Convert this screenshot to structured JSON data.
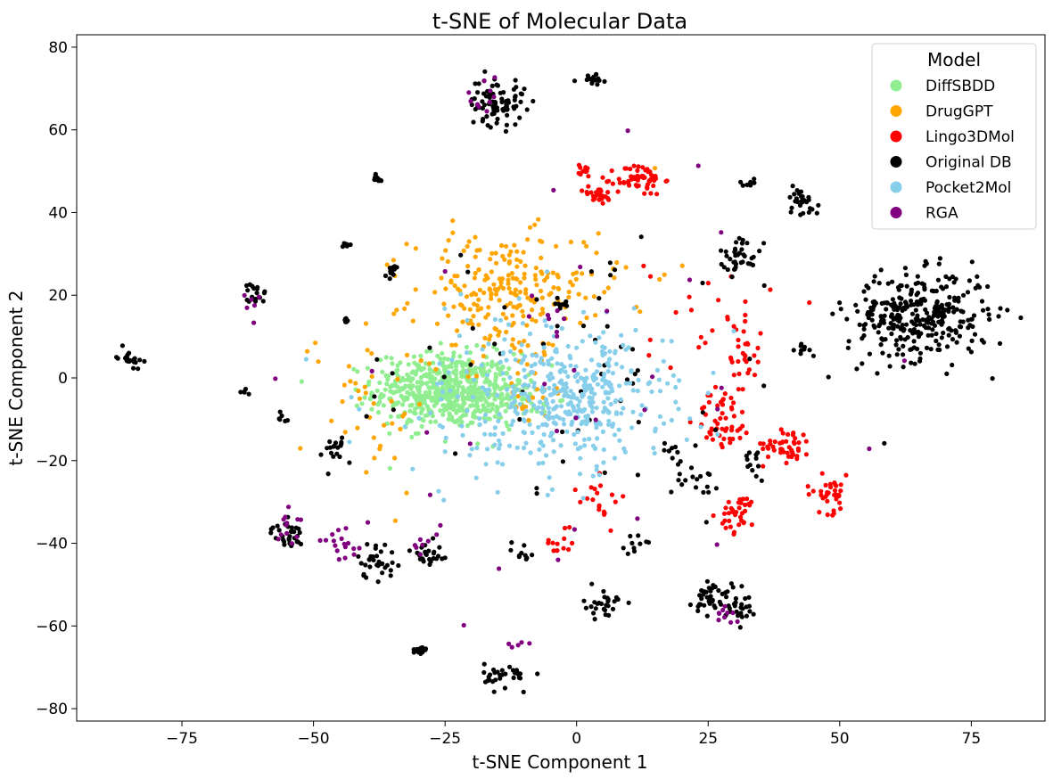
{
  "chart_data": {
    "type": "scatter",
    "title": "t-SNE of Molecular Data",
    "xlabel": "t-SNE Component 1",
    "ylabel": "t-SNE Component 2",
    "xlim": [
      -95,
      89
    ],
    "ylim": [
      -83,
      83
    ],
    "xticks": [
      -75,
      -50,
      -25,
      0,
      25,
      50,
      75
    ],
    "yticks": [
      -80,
      -60,
      -40,
      -20,
      0,
      20,
      40,
      60,
      80
    ],
    "grid": false,
    "legend": {
      "title": "Model",
      "placement": "top-right"
    },
    "series": [
      {
        "name": "DiffSBDD",
        "color": "#90EE90",
        "clusters": [
          {
            "center": [
              -25,
              -3
            ],
            "spread": [
              9,
              6
            ],
            "count": 560
          },
          {
            "center": [
              -14,
              -5
            ],
            "spread": [
              5,
              4
            ],
            "count": 80
          }
        ]
      },
      {
        "name": "DrugGPT",
        "color": "#FFA500",
        "clusters": [
          {
            "center": [
              -15,
              20
            ],
            "spread": [
              11,
              10
            ],
            "count": 200
          },
          {
            "center": [
              -40,
              -5
            ],
            "spread": [
              8,
              15
            ],
            "count": 40
          },
          {
            "center": [
              0,
              25
            ],
            "spread": [
              12,
              10
            ],
            "count": 40
          },
          {
            "center": [
              -10,
              0
            ],
            "spread": [
              8,
              8
            ],
            "count": 30
          }
        ]
      },
      {
        "name": "Lingo3DMol",
        "color": "#FF0000",
        "clusters": [
          {
            "center": [
              12,
              48
            ],
            "spread": [
              3,
              2.5
            ],
            "count": 60
          },
          {
            "center": [
              4,
              44
            ],
            "spread": [
              2,
              1.5
            ],
            "count": 25
          },
          {
            "center": [
              1,
              50
            ],
            "spread": [
              1.5,
              1
            ],
            "count": 12
          },
          {
            "center": [
              28,
              -10
            ],
            "spread": [
              3.5,
              5
            ],
            "count": 50
          },
          {
            "center": [
              31,
              -33
            ],
            "spread": [
              2.5,
              3
            ],
            "count": 35
          },
          {
            "center": [
              40,
              -16
            ],
            "spread": [
              3,
              3
            ],
            "count": 45
          },
          {
            "center": [
              48,
              -28
            ],
            "spread": [
              3,
              3
            ],
            "count": 35
          },
          {
            "center": [
              32,
              5
            ],
            "spread": [
              2,
              5
            ],
            "count": 25
          },
          {
            "center": [
              25,
              15
            ],
            "spread": [
              8,
              10
            ],
            "count": 25
          },
          {
            "center": [
              5,
              -30
            ],
            "spread": [
              3,
              4
            ],
            "count": 20
          },
          {
            "center": [
              -3,
              -40
            ],
            "spread": [
              2,
              2
            ],
            "count": 12
          }
        ]
      },
      {
        "name": "Original DB",
        "color": "#000000",
        "clusters": [
          {
            "center": [
              65,
              15
            ],
            "spread": [
              9,
              7
            ],
            "count": 330
          },
          {
            "center": [
              -15,
              67
            ],
            "spread": [
              3.5,
              4
            ],
            "count": 80
          },
          {
            "center": [
              3,
              72
            ],
            "spread": [
              1.5,
              0.8
            ],
            "count": 18
          },
          {
            "center": [
              -85,
              5
            ],
            "spread": [
              1.5,
              1.5
            ],
            "count": 22
          },
          {
            "center": [
              -61,
              20
            ],
            "spread": [
              1.5,
              2
            ],
            "count": 18
          },
          {
            "center": [
              -55,
              -38
            ],
            "spread": [
              2,
              2
            ],
            "count": 32
          },
          {
            "center": [
              -38,
              -44
            ],
            "spread": [
              2.5,
              3
            ],
            "count": 32
          },
          {
            "center": [
              -28,
              -43
            ],
            "spread": [
              2.5,
              2.5
            ],
            "count": 25
          },
          {
            "center": [
              -30,
              -66
            ],
            "spread": [
              1,
              0.8
            ],
            "count": 18
          },
          {
            "center": [
              -13,
              -72
            ],
            "spread": [
              3,
              2
            ],
            "count": 32
          },
          {
            "center": [
              5,
              -55
            ],
            "spread": [
              2.5,
              2.5
            ],
            "count": 28
          },
          {
            "center": [
              26,
              -53
            ],
            "spread": [
              2.5,
              3
            ],
            "count": 42
          },
          {
            "center": [
              31,
              -56
            ],
            "spread": [
              1.5,
              2
            ],
            "count": 22
          },
          {
            "center": [
              31,
              30
            ],
            "spread": [
              2.5,
              3
            ],
            "count": 38
          },
          {
            "center": [
              43,
              43
            ],
            "spread": [
              2,
              2.5
            ],
            "count": 28
          },
          {
            "center": [
              -38,
              48
            ],
            "spread": [
              1,
              1
            ],
            "count": 12
          },
          {
            "center": [
              -35,
              26
            ],
            "spread": [
              1,
              1
            ],
            "count": 12
          },
          {
            "center": [
              -44,
              32
            ],
            "spread": [
              0.5,
              0.5
            ],
            "count": 6
          },
          {
            "center": [
              -44,
              14
            ],
            "spread": [
              0.5,
              0.5
            ],
            "count": 8
          },
          {
            "center": [
              -46,
              -18
            ],
            "spread": [
              3,
              3
            ],
            "count": 18
          },
          {
            "center": [
              -56,
              -10
            ],
            "spread": [
              1,
              1
            ],
            "count": 6
          },
          {
            "center": [
              -3,
              18
            ],
            "spread": [
              1,
              1
            ],
            "count": 10
          },
          {
            "center": [
              12,
              -40
            ],
            "spread": [
              2,
              1.5
            ],
            "count": 10
          },
          {
            "center": [
              23,
              -25
            ],
            "spread": [
              2.5,
              2
            ],
            "count": 15
          },
          {
            "center": [
              34,
              -20
            ],
            "spread": [
              1.5,
              3
            ],
            "count": 12
          },
          {
            "center": [
              18,
              -18
            ],
            "spread": [
              1.5,
              1.5
            ],
            "count": 10
          },
          {
            "center": [
              -10,
              -42
            ],
            "spread": [
              2,
              2
            ],
            "count": 10
          },
          {
            "center": [
              43,
              7
            ],
            "spread": [
              1,
              1
            ],
            "count": 8
          },
          {
            "center": [
              33,
              47
            ],
            "spread": [
              1.5,
              1
            ],
            "count": 8
          },
          {
            "center": [
              -63,
              -3
            ],
            "spread": [
              1,
              0.6
            ],
            "count": 5
          },
          {
            "center": [
              0,
              0
            ],
            "spread": [
              30,
              25
            ],
            "count": 60
          }
        ]
      },
      {
        "name": "Pocket2Mol",
        "color": "#87CEEB",
        "clusters": [
          {
            "center": [
              0,
              -5
            ],
            "spread": [
              11,
              10
            ],
            "count": 320
          },
          {
            "center": [
              -10,
              -5
            ],
            "spread": [
              20,
              16
            ],
            "count": 140
          }
        ]
      },
      {
        "name": "RGA",
        "color": "#800080",
        "clusters": [
          {
            "center": [
              -18,
              68
            ],
            "spread": [
              4,
              3
            ],
            "count": 10
          },
          {
            "center": [
              -44,
              -40
            ],
            "spread": [
              3,
              3
            ],
            "count": 18
          },
          {
            "center": [
              -55,
              -36
            ],
            "spread": [
              2,
              2.5
            ],
            "count": 12
          },
          {
            "center": [
              -29,
              -40
            ],
            "spread": [
              2,
              3
            ],
            "count": 8
          },
          {
            "center": [
              28,
              -58
            ],
            "spread": [
              3,
              2
            ],
            "count": 10
          },
          {
            "center": [
              -10,
              -65
            ],
            "spread": [
              2,
              1.5
            ],
            "count": 5
          },
          {
            "center": [
              -62,
              18
            ],
            "spread": [
              1,
              2
            ],
            "count": 6
          },
          {
            "center": [
              -5,
              15
            ],
            "spread": [
              4,
              3
            ],
            "count": 8
          },
          {
            "center": [
              0,
              0
            ],
            "spread": [
              35,
              30
            ],
            "count": 30
          }
        ]
      }
    ]
  }
}
